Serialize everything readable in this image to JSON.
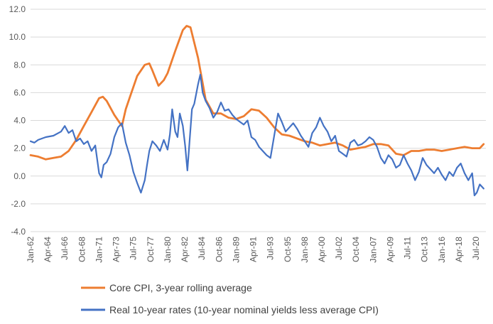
{
  "chart_data": {
    "type": "line",
    "title": "",
    "xlabel": "",
    "ylabel": "",
    "ylim": [
      -4.0,
      12.0
    ],
    "yticks": [
      "-4.0",
      "-2.0",
      "0.0",
      "2.0",
      "4.0",
      "6.0",
      "8.0",
      "10.0",
      "12.0"
    ],
    "xlim": [
      1962.0,
      2021.8
    ],
    "xtick_labels": [
      "Jan-62",
      "Apr-64",
      "Jul-66",
      "Oct-68",
      "Jan-71",
      "Apr-73",
      "Jul-75",
      "Oct-77",
      "Jan-80",
      "Apr-82",
      "Jul-84",
      "Oct-86",
      "Jan-89",
      "Apr-91",
      "Jul-93",
      "Oct-95",
      "Jan-98",
      "Apr-00",
      "Jul-02",
      "Oct-04",
      "Jan-07",
      "Apr-09",
      "Jul-11",
      "Oct-13",
      "Jan-16",
      "Apr-18",
      "Jul-20"
    ],
    "grid": "horizontal",
    "legend_position": "bottom",
    "series": [
      {
        "name": "Core CPI, 3-year rolling average",
        "color": "#ED7D31",
        "x": [
          1962.0,
          1963.0,
          1964.0,
          1965.0,
          1966.0,
          1967.0,
          1968.0,
          1969.0,
          1970.0,
          1971.0,
          1971.5,
          1972.0,
          1973.0,
          1974.0,
          1974.5,
          1975.0,
          1976.0,
          1977.0,
          1977.6,
          1978.0,
          1978.8,
          1979.5,
          1980.0,
          1981.0,
          1982.0,
          1982.5,
          1983.0,
          1984.0,
          1985.0,
          1986.0,
          1987.0,
          1988.0,
          1989.0,
          1990.0,
          1991.0,
          1992.0,
          1993.0,
          1994.0,
          1995.0,
          1996.0,
          1997.0,
          1998.0,
          1999.0,
          2000.0,
          2001.0,
          2002.0,
          2003.0,
          2004.0,
          2005.0,
          2006.0,
          2007.0,
          2008.0,
          2009.0,
          2010.0,
          2011.0,
          2012.0,
          2013.0,
          2014.0,
          2015.0,
          2016.0,
          2017.0,
          2018.0,
          2019.0,
          2020.0,
          2021.0,
          2021.5
        ],
        "values": [
          1.5,
          1.4,
          1.2,
          1.3,
          1.4,
          1.8,
          2.6,
          3.6,
          4.6,
          5.6,
          5.7,
          5.4,
          4.4,
          3.6,
          4.8,
          5.6,
          7.2,
          8.0,
          8.1,
          7.6,
          6.5,
          6.9,
          7.4,
          9.0,
          10.5,
          10.8,
          10.7,
          8.5,
          5.5,
          4.5,
          4.5,
          4.2,
          4.1,
          4.3,
          4.8,
          4.7,
          4.2,
          3.5,
          3.0,
          2.9,
          2.7,
          2.5,
          2.4,
          2.2,
          2.3,
          2.4,
          2.2,
          1.9,
          2.0,
          2.1,
          2.3,
          2.3,
          2.2,
          1.6,
          1.5,
          1.8,
          1.8,
          1.9,
          1.9,
          1.8,
          1.9,
          2.0,
          2.1,
          2.0,
          2.0,
          2.3
        ]
      },
      {
        "name": "Real 10-year rates (10-year nominal yields less average CPI)",
        "color": "#4472C4",
        "x": [
          1962.0,
          1962.5,
          1963.0,
          1964.0,
          1965.0,
          1966.0,
          1966.5,
          1967.0,
          1967.5,
          1968.0,
          1968.5,
          1969.0,
          1969.5,
          1970.0,
          1970.5,
          1971.0,
          1971.3,
          1971.6,
          1972.0,
          1972.5,
          1973.0,
          1973.5,
          1974.0,
          1974.5,
          1975.0,
          1975.5,
          1976.0,
          1976.5,
          1977.0,
          1977.3,
          1977.6,
          1978.0,
          1978.5,
          1979.0,
          1979.5,
          1980.0,
          1980.3,
          1980.6,
          1981.0,
          1981.3,
          1981.6,
          1982.0,
          1982.3,
          1982.6,
          1982.9,
          1983.2,
          1983.5,
          1984.0,
          1984.3,
          1984.6,
          1985.0,
          1985.5,
          1986.0,
          1986.5,
          1987.0,
          1987.5,
          1988.0,
          1988.5,
          1989.0,
          1989.5,
          1990.0,
          1990.5,
          1991.0,
          1991.5,
          1992.0,
          1992.5,
          1993.0,
          1993.5,
          1994.0,
          1994.5,
          1995.0,
          1995.5,
          1996.0,
          1996.5,
          1997.0,
          1997.5,
          1998.0,
          1998.5,
          1999.0,
          1999.5,
          2000.0,
          2000.5,
          2001.0,
          2001.5,
          2002.0,
          2002.5,
          2003.0,
          2003.5,
          2004.0,
          2004.5,
          2005.0,
          2005.5,
          2006.0,
          2006.5,
          2007.0,
          2007.5,
          2008.0,
          2008.5,
          2009.0,
          2009.5,
          2010.0,
          2010.5,
          2011.0,
          2011.5,
          2012.0,
          2012.5,
          2013.0,
          2013.5,
          2014.0,
          2014.5,
          2015.0,
          2015.5,
          2016.0,
          2016.5,
          2017.0,
          2017.5,
          2018.0,
          2018.5,
          2019.0,
          2019.5,
          2020.0,
          2020.3,
          2020.6,
          2021.0,
          2021.5
        ],
        "values": [
          2.5,
          2.4,
          2.6,
          2.8,
          2.9,
          3.2,
          3.6,
          3.1,
          3.3,
          2.5,
          2.7,
          2.3,
          2.5,
          1.8,
          2.2,
          0.2,
          -0.1,
          0.8,
          1.0,
          1.6,
          2.8,
          3.5,
          3.8,
          2.4,
          1.5,
          0.3,
          -0.5,
          -1.2,
          -0.3,
          0.8,
          1.8,
          2.5,
          2.2,
          1.8,
          2.6,
          1.9,
          3.0,
          4.8,
          3.2,
          2.8,
          4.5,
          3.6,
          2.2,
          0.4,
          2.6,
          4.8,
          5.2,
          6.6,
          7.3,
          6.0,
          5.4,
          4.9,
          4.2,
          4.6,
          5.3,
          4.7,
          4.8,
          4.4,
          4.1,
          3.9,
          3.7,
          4.0,
          2.8,
          2.6,
          2.1,
          1.8,
          1.5,
          1.3,
          2.9,
          4.5,
          3.9,
          3.2,
          3.5,
          3.8,
          3.4,
          2.9,
          2.5,
          2.1,
          3.1,
          3.5,
          4.2,
          3.6,
          3.2,
          2.5,
          2.9,
          1.8,
          1.6,
          1.4,
          2.4,
          2.6,
          2.2,
          2.3,
          2.5,
          2.8,
          2.6,
          2.1,
          1.3,
          0.9,
          1.5,
          1.2,
          0.6,
          0.8,
          1.5,
          0.9,
          0.4,
          -0.3,
          0.3,
          1.3,
          0.8,
          0.5,
          0.2,
          0.6,
          0.1,
          -0.3,
          0.3,
          0.0,
          0.6,
          0.9,
          0.2,
          -0.3,
          0.2,
          -1.4,
          -1.2,
          -0.6,
          -0.9
        ]
      }
    ]
  }
}
